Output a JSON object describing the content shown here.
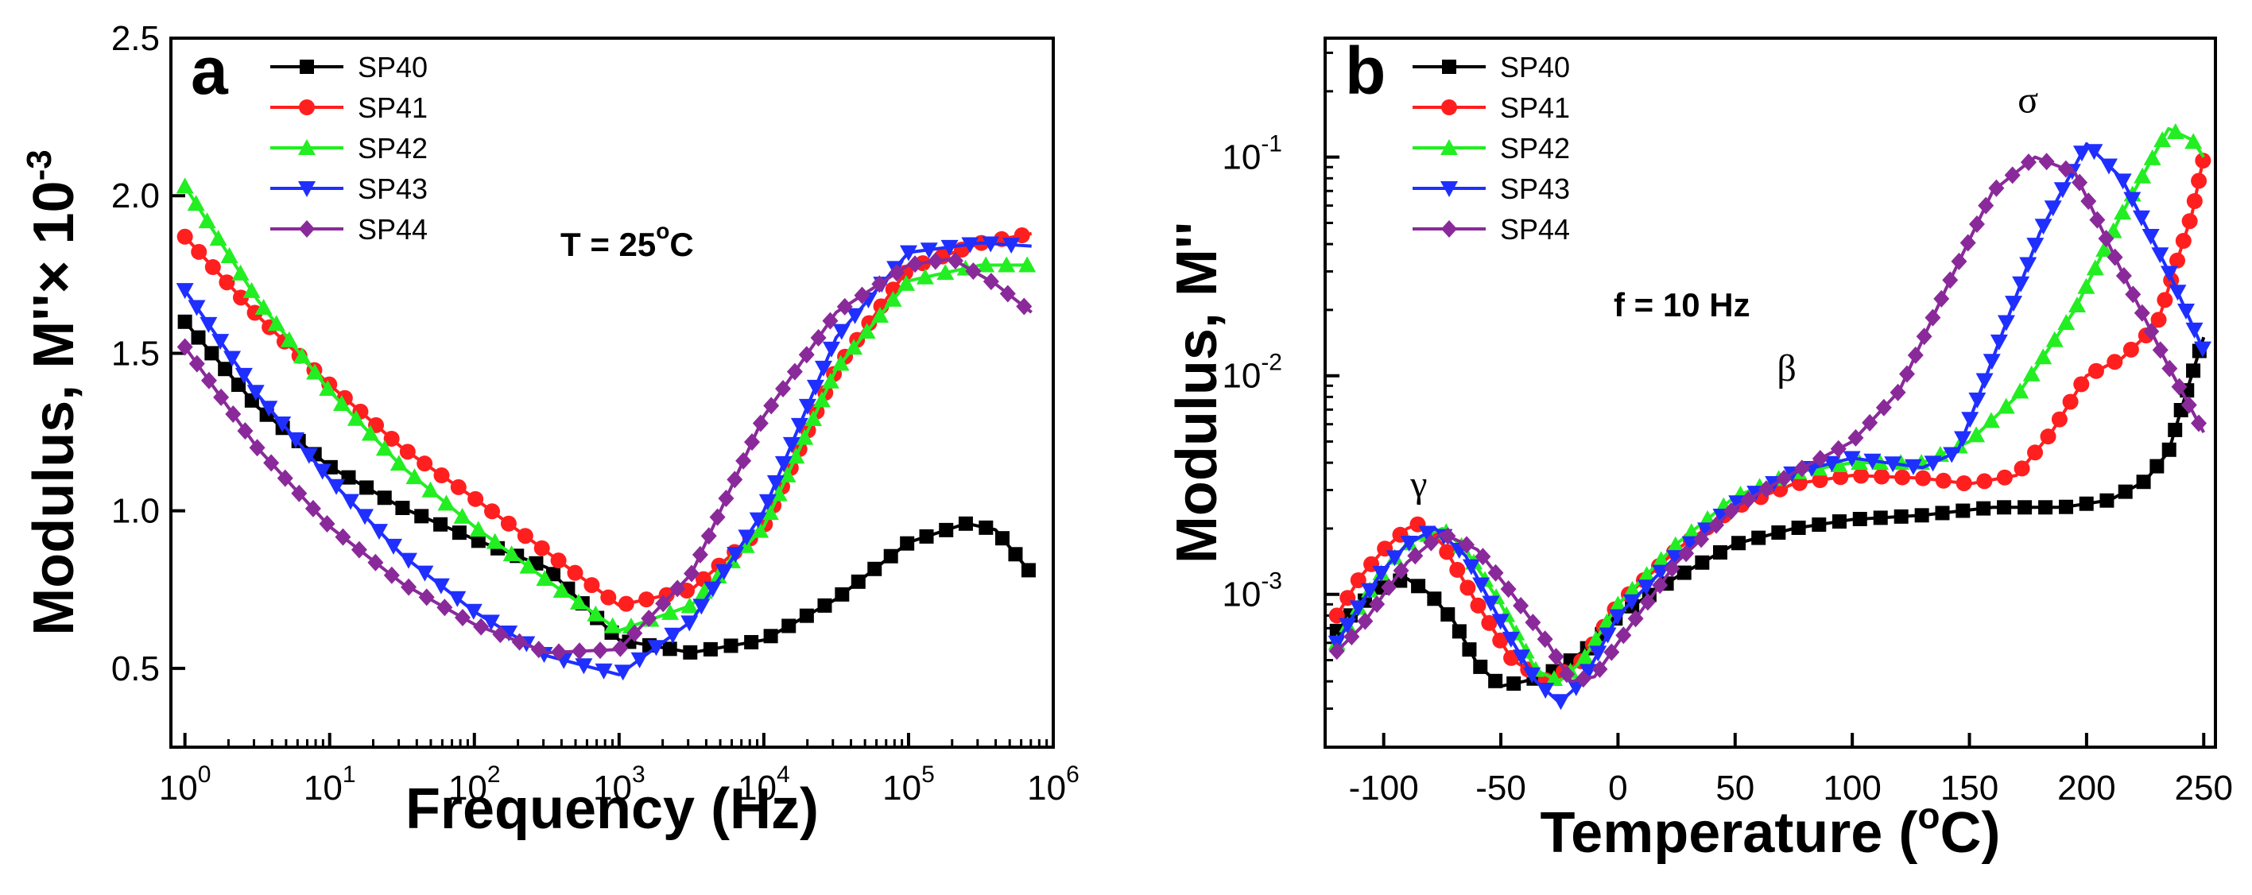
{
  "colors": {
    "SP40": "#000000",
    "SP41": "#ff1f1f",
    "SP42": "#22ee22",
    "SP43": "#1f2fff",
    "SP44": "#8a2a9a"
  },
  "chart_data": [
    {
      "type": "line",
      "panel_label": "a",
      "xlabel": "Frequency (Hz)",
      "ylabel": "Modulus, M''× 10",
      "ylabel_exponent": "-3",
      "x_scale": "log",
      "xlim": [
        0.8,
        1000000
      ],
      "ylim": [
        0.25,
        2.5
      ],
      "x_ticks": [
        "10",
        "10",
        "10",
        "10",
        "10",
        "10",
        "10"
      ],
      "x_tick_exponents": [
        "0",
        "1",
        "2",
        "3",
        "4",
        "5",
        "6"
      ],
      "x_tick_values": [
        1,
        10,
        100,
        1000,
        10000,
        100000,
        1000000
      ],
      "y_ticks": [
        "0.5",
        "1.0",
        "1.5",
        "2.0",
        "2.5"
      ],
      "y_tick_values": [
        0.5,
        1.0,
        1.5,
        2.0,
        2.5
      ],
      "annotation": {
        "text": "T = 25",
        "superscript": "o",
        "suffix": "C"
      },
      "legend": [
        "SP40",
        "SP41",
        "SP42",
        "SP43",
        "SP44"
      ],
      "legend_position": "top-left",
      "series": [
        {
          "name": "SP40",
          "marker": "square",
          "points": [
            [
              0,
              1.6
            ],
            [
              0.5,
              1.33
            ],
            [
              1,
              1.14
            ],
            [
              1.5,
              1.01
            ],
            [
              2,
              0.91
            ],
            [
              2.5,
              0.82
            ],
            [
              3,
              0.59
            ],
            [
              3.5,
              0.55
            ],
            [
              4,
              0.59
            ],
            [
              4.5,
              0.72
            ],
            [
              5,
              0.9
            ],
            [
              5.4,
              0.96
            ],
            [
              5.6,
              0.94
            ],
            [
              5.85,
              0.8
            ]
          ]
        },
        {
          "name": "SP41",
          "marker": "circle",
          "points": [
            [
              0,
              1.87
            ],
            [
              0.5,
              1.62
            ],
            [
              1,
              1.4
            ],
            [
              1.5,
              1.2
            ],
            [
              2,
              1.04
            ],
            [
              2.5,
              0.87
            ],
            [
              3,
              0.7
            ],
            [
              3.5,
              0.75
            ],
            [
              4,
              0.95
            ],
            [
              4.5,
              1.45
            ],
            [
              5,
              1.77
            ],
            [
              5.5,
              1.85
            ],
            [
              5.85,
              1.88
            ]
          ]
        },
        {
          "name": "SP42",
          "marker": "triangle-up",
          "points": [
            [
              0,
              2.03
            ],
            [
              0.5,
              1.67
            ],
            [
              1,
              1.38
            ],
            [
              1.5,
              1.14
            ],
            [
              2,
              0.95
            ],
            [
              2.5,
              0.78
            ],
            [
              3,
              0.62
            ],
            [
              3.5,
              0.7
            ],
            [
              4,
              0.95
            ],
            [
              4.5,
              1.45
            ],
            [
              5,
              1.73
            ],
            [
              5.5,
              1.78
            ],
            [
              5.85,
              1.78
            ]
          ]
        },
        {
          "name": "SP43",
          "marker": "triangle-down",
          "points": [
            [
              0,
              1.7
            ],
            [
              0.5,
              1.37
            ],
            [
              1,
              1.1
            ],
            [
              1.5,
              0.86
            ],
            [
              2,
              0.68
            ],
            [
              2.5,
              0.54
            ],
            [
              3,
              0.48
            ],
            [
              3.5,
              0.65
            ],
            [
              4,
              1.0
            ],
            [
              4.5,
              1.55
            ],
            [
              5,
              1.82
            ],
            [
              5.5,
              1.85
            ],
            [
              5.85,
              1.84
            ]
          ]
        },
        {
          "name": "SP44",
          "marker": "diamond",
          "points": [
            [
              0,
              1.52
            ],
            [
              0.5,
              1.2
            ],
            [
              1,
              0.95
            ],
            [
              1.5,
              0.77
            ],
            [
              2,
              0.64
            ],
            [
              2.5,
              0.55
            ],
            [
              3,
              0.56
            ],
            [
              3.5,
              0.8
            ],
            [
              4,
              1.3
            ],
            [
              4.5,
              1.63
            ],
            [
              5,
              1.78
            ],
            [
              5.3,
              1.8
            ],
            [
              5.6,
              1.72
            ],
            [
              5.85,
              1.63
            ]
          ]
        }
      ]
    },
    {
      "type": "line",
      "panel_label": "b",
      "xlabel": "Temperature (",
      "xlabel_superscript": "o",
      "xlabel_suffix": "C)",
      "ylabel": "Modulus, M''",
      "y_scale": "log",
      "xlim": [
        -125,
        255
      ],
      "ylim": [
        0.0002,
        0.35
      ],
      "x_ticks": [
        "-100",
        "-50",
        "0",
        "50",
        "100",
        "150",
        "200",
        "250"
      ],
      "x_tick_values": [
        -100,
        -50,
        0,
        50,
        100,
        150,
        200,
        250
      ],
      "y_ticks": [
        "10",
        "10",
        "10"
      ],
      "y_tick_exponents": [
        "-3",
        "-2",
        "-1"
      ],
      "y_tick_values": [
        0.001,
        0.01,
        0.1
      ],
      "annotation": {
        "text": "f = 10 Hz"
      },
      "peak_labels": [
        {
          "text": "γ",
          "x": -85,
          "y": 0.0028
        },
        {
          "text": "β",
          "x": 72,
          "y": 0.0095
        },
        {
          "text": "σ",
          "x": 175,
          "y": 0.16
        }
      ],
      "legend": [
        "SP40",
        "SP41",
        "SP42",
        "SP43",
        "SP44"
      ],
      "legend_position": "top-left",
      "series": [
        {
          "name": "SP40",
          "marker": "square",
          "points": [
            [
              -120,
              0.00068
            ],
            [
              -110,
              0.0009
            ],
            [
              -100,
              0.0011
            ],
            [
              -90,
              0.00118
            ],
            [
              -80,
              0.001
            ],
            [
              -70,
              0.00075
            ],
            [
              -60,
              0.00048
            ],
            [
              -50,
              0.00038
            ],
            [
              -40,
              0.0004
            ],
            [
              -30,
              0.00043
            ],
            [
              -20,
              0.0005
            ],
            [
              -10,
              0.0006
            ],
            [
              0,
              0.0008
            ],
            [
              25,
              0.0012
            ],
            [
              50,
              0.0017
            ],
            [
              75,
              0.002
            ],
            [
              100,
              0.0022
            ],
            [
              130,
              0.0023
            ],
            [
              160,
              0.0025
            ],
            [
              190,
              0.0025
            ],
            [
              210,
              0.0027
            ],
            [
              225,
              0.0033
            ],
            [
              235,
              0.0045
            ],
            [
              242,
              0.008
            ],
            [
              250,
              0.015
            ]
          ]
        },
        {
          "name": "SP41",
          "marker": "circle",
          "points": [
            [
              -120,
              0.0008
            ],
            [
              -110,
              0.0012
            ],
            [
              -100,
              0.0016
            ],
            [
              -90,
              0.002
            ],
            [
              -85,
              0.0021
            ],
            [
              -75,
              0.0017
            ],
            [
              -60,
              0.0009
            ],
            [
              -45,
              0.0005
            ],
            [
              -30,
              0.0004
            ],
            [
              -15,
              0.0005
            ],
            [
              0,
              0.0009
            ],
            [
              25,
              0.0016
            ],
            [
              50,
              0.0025
            ],
            [
              75,
              0.0032
            ],
            [
              100,
              0.0035
            ],
            [
              130,
              0.0034
            ],
            [
              150,
              0.0032
            ],
            [
              170,
              0.0035
            ],
            [
              185,
              0.0055
            ],
            [
              200,
              0.01
            ],
            [
              215,
              0.012
            ],
            [
              230,
              0.017
            ],
            [
              245,
              0.055
            ],
            [
              250,
              0.1
            ]
          ]
        },
        {
          "name": "SP42",
          "marker": "triangle-up",
          "points": [
            [
              -120,
              0.0006
            ],
            [
              -110,
              0.0009
            ],
            [
              -100,
              0.0013
            ],
            [
              -90,
              0.0017
            ],
            [
              -75,
              0.002
            ],
            [
              -65,
              0.0016
            ],
            [
              -50,
              0.0009
            ],
            [
              -35,
              0.00045
            ],
            [
              -25,
              0.0004
            ],
            [
              -15,
              0.0005
            ],
            [
              0,
              0.0009
            ],
            [
              25,
              0.0017
            ],
            [
              50,
              0.0028
            ],
            [
              75,
              0.0036
            ],
            [
              100,
              0.004
            ],
            [
              130,
              0.004
            ],
            [
              150,
              0.005
            ],
            [
              170,
              0.008
            ],
            [
              195,
              0.02
            ],
            [
              215,
              0.055
            ],
            [
              235,
              0.135
            ],
            [
              245,
              0.12
            ],
            [
              250,
              0.1
            ]
          ]
        },
        {
          "name": "SP43",
          "marker": "triangle-down",
          "points": [
            [
              -120,
              0.0006
            ],
            [
              -110,
              0.0009
            ],
            [
              -100,
              0.0013
            ],
            [
              -90,
              0.0017
            ],
            [
              -78,
              0.002
            ],
            [
              -65,
              0.0015
            ],
            [
              -50,
              0.00075
            ],
            [
              -35,
              0.0004
            ],
            [
              -25,
              0.00032
            ],
            [
              -15,
              0.0004
            ],
            [
              0,
              0.0008
            ],
            [
              25,
              0.0015
            ],
            [
              50,
              0.0026
            ],
            [
              75,
              0.0036
            ],
            [
              100,
              0.0042
            ],
            [
              130,
              0.0038
            ],
            [
              145,
              0.0045
            ],
            [
              160,
              0.012
            ],
            [
              180,
              0.045
            ],
            [
              200,
              0.115
            ],
            [
              215,
              0.08
            ],
            [
              235,
              0.03
            ],
            [
              250,
              0.013
            ]
          ]
        },
        {
          "name": "SP44",
          "marker": "diamond",
          "points": [
            [
              -120,
              0.00055
            ],
            [
              -110,
              0.0007
            ],
            [
              -100,
              0.001
            ],
            [
              -90,
              0.0014
            ],
            [
              -75,
              0.0019
            ],
            [
              -60,
              0.0016
            ],
            [
              -45,
              0.001
            ],
            [
              -30,
              0.0006
            ],
            [
              -20,
              0.0004
            ],
            [
              -10,
              0.00042
            ],
            [
              0,
              0.0006
            ],
            [
              25,
              0.0014
            ],
            [
              50,
              0.0025
            ],
            [
              75,
              0.0036
            ],
            [
              100,
              0.005
            ],
            [
              120,
              0.0085
            ],
            [
              140,
              0.025
            ],
            [
              160,
              0.07
            ],
            [
              178,
              0.1
            ],
            [
              195,
              0.085
            ],
            [
              215,
              0.03
            ],
            [
              235,
              0.011
            ],
            [
              250,
              0.0055
            ]
          ]
        }
      ]
    }
  ]
}
